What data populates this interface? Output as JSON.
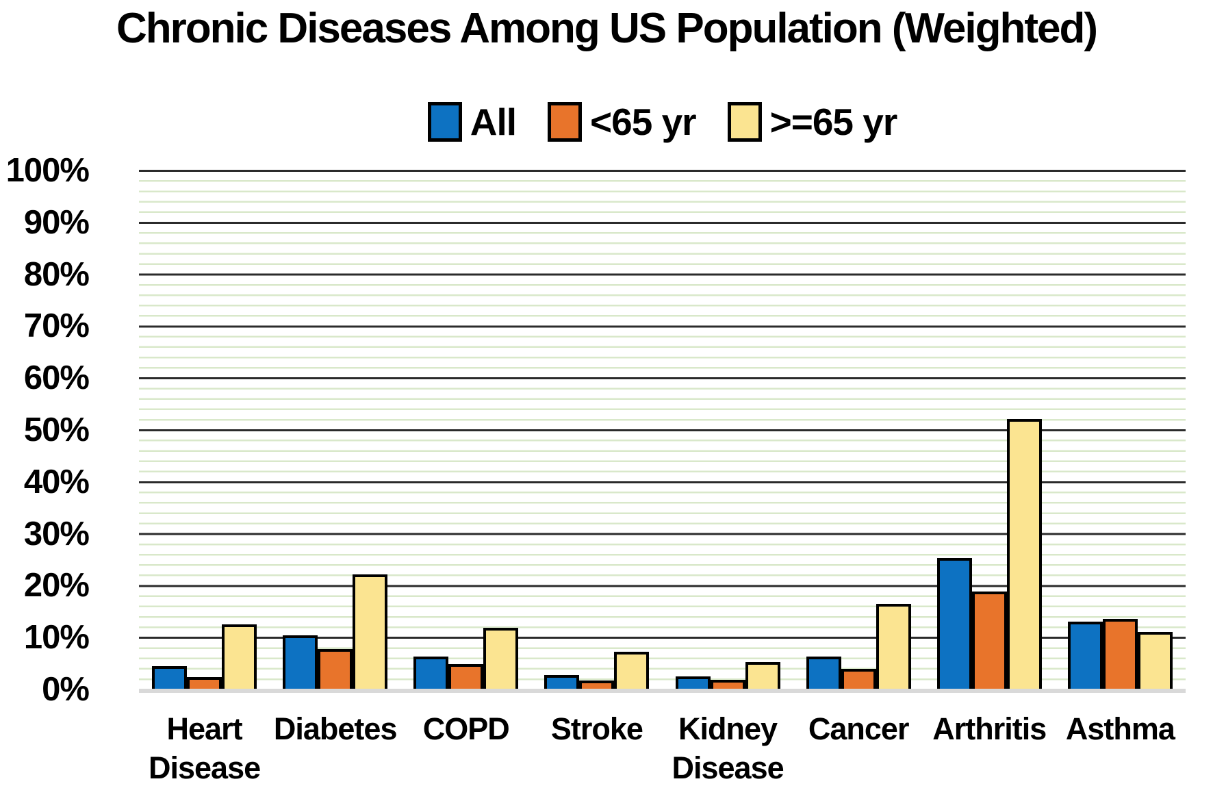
{
  "title": "Chronic Diseases Among US Population (Weighted)",
  "chart_data": {
    "type": "bar",
    "title": "Chronic Diseases Among US Population (Weighted)",
    "categories": [
      "Heart Disease",
      "Diabetes",
      "COPD",
      "Stroke",
      "Kidney Disease",
      "Cancer",
      "Arthritis",
      "Asthma"
    ],
    "category_label_lines": [
      [
        "Heart",
        "Disease"
      ],
      [
        "Diabetes"
      ],
      [
        "COPD"
      ],
      [
        "Stroke"
      ],
      [
        "Kidney",
        "Disease"
      ],
      [
        "Cancer"
      ],
      [
        "Arthritis"
      ],
      [
        "Asthma"
      ]
    ],
    "series": [
      {
        "name": "All",
        "color": "#0d72c2",
        "values": [
          4.3,
          10.3,
          6.2,
          2.6,
          2.4,
          6.2,
          25.2,
          12.9
        ]
      },
      {
        "name": "<65 yr",
        "color": "#e8742b",
        "values": [
          2.3,
          7.6,
          4.7,
          1.6,
          1.7,
          3.8,
          18.8,
          13.5
        ]
      },
      {
        "name": ">=65 yr",
        "color": "#fbe491",
        "values": [
          12.4,
          22.0,
          11.7,
          7.1,
          5.1,
          16.3,
          52.0,
          10.9
        ]
      }
    ],
    "xlabel": "",
    "ylabel": "",
    "ylim": [
      0,
      100
    ],
    "yticks": [
      "100%",
      "90%",
      "80%",
      "70%",
      "60%",
      "50%",
      "40%",
      "30%",
      "20%",
      "10%",
      "0%"
    ],
    "legend_position": "top",
    "grid": {
      "major_interval_pct": 10,
      "minor_interval_pct": 2,
      "major_color": "#2b2b2b",
      "minor_color": "#d9e8ca",
      "baseline_color": "#d9d9d9",
      "bar_border_color": "#000000"
    }
  }
}
